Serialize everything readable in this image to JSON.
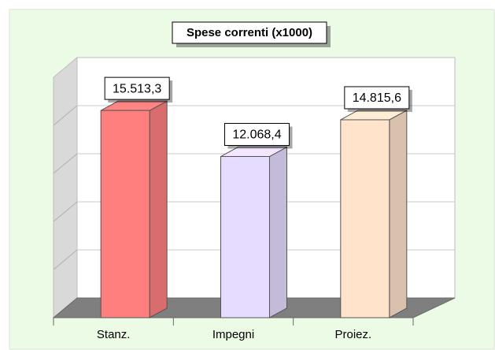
{
  "chart_data": {
    "type": "bar3d",
    "title": "Spese correnti (x1000)",
    "categories": [
      "Stanz.",
      "Impegni",
      "Proiez."
    ],
    "values": [
      15513.3,
      12068.4,
      14815.6
    ],
    "value_labels": [
      "15.513,3",
      "12.068,4",
      "14.815,6"
    ],
    "colors": [
      "#ff7f7f",
      "#e6dcff",
      "#ffe3cb"
    ],
    "ylim": [
      0,
      18000
    ],
    "yticks": [
      0,
      3600,
      7200,
      10800,
      14400,
      18000
    ],
    "grid": true
  }
}
